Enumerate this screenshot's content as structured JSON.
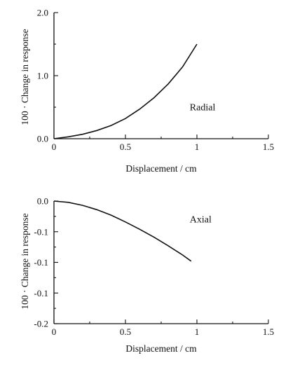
{
  "chart_data": [
    {
      "type": "line",
      "xlabel": "Displacement / cm",
      "ylabel": "100 · Change in response",
      "xlim": [
        0,
        1.5
      ],
      "ylim": [
        0,
        2.0
      ],
      "xticks": [
        0,
        0.5,
        1,
        1.5
      ],
      "xtick_labels": [
        "0",
        "0.5",
        "1",
        "1.5"
      ],
      "xminor": [
        0.25,
        0.75,
        1.25
      ],
      "yticks": [
        0,
        1,
        2
      ],
      "ytick_labels": [
        "0.0",
        "1.0",
        "2.0"
      ],
      "yminor": [
        0.5,
        1.5
      ],
      "annotation": {
        "text": "Radial",
        "x": 0.95,
        "y": 0.45
      },
      "grid": false,
      "series": [
        {
          "x": [
            0,
            0.1,
            0.2,
            0.3,
            0.4,
            0.5,
            0.6,
            0.7,
            0.8,
            0.9,
            1.0
          ],
          "y": [
            0,
            0.03,
            0.07,
            0.13,
            0.21,
            0.32,
            0.47,
            0.65,
            0.87,
            1.14,
            1.5
          ]
        }
      ]
    },
    {
      "type": "line",
      "xlabel": "Displacement / cm",
      "ylabel": "100 · Change in response",
      "xlim": [
        0,
        1.5
      ],
      "ylim": [
        -0.2,
        0
      ],
      "xticks": [
        0,
        0.5,
        1,
        1.5
      ],
      "xtick_labels": [
        "0",
        "0.5",
        "1",
        "1.5"
      ],
      "xminor": [
        0.25,
        0.75,
        1.25
      ],
      "yticks": [
        0,
        -0.05,
        -0.1,
        -0.15,
        -0.2
      ],
      "ytick_labels": [
        "0.0",
        "-0.1",
        "-0.1",
        "-0.1",
        "-0.2"
      ],
      "yminor": [
        -0.025,
        -0.075,
        -0.125,
        -0.175
      ],
      "annotation": {
        "text": "Axial",
        "x": 0.95,
        "y": -0.035
      },
      "grid": false,
      "series": [
        {
          "x": [
            0,
            0.1,
            0.2,
            0.3,
            0.4,
            0.5,
            0.6,
            0.7,
            0.8,
            0.9,
            0.96
          ],
          "y": [
            0,
            -0.002,
            -0.007,
            -0.014,
            -0.023,
            -0.034,
            -0.046,
            -0.059,
            -0.073,
            -0.088,
            -0.098
          ]
        }
      ]
    }
  ]
}
